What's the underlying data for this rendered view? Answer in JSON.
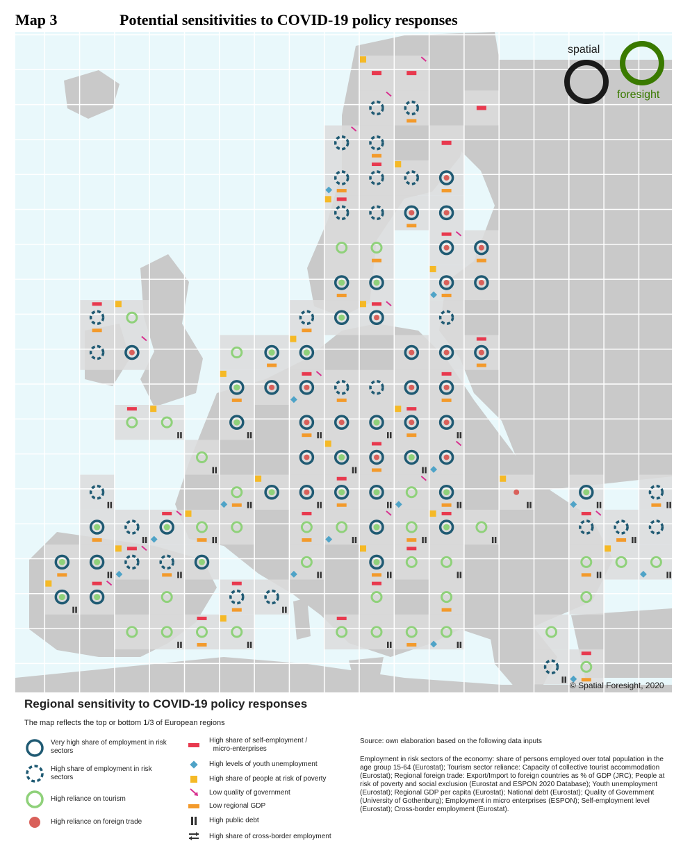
{
  "header": {
    "map_number": "Map 3",
    "title": "Potential sensitivities to COVID-19 policy responses"
  },
  "logo": {
    "word_top": "spatial",
    "word_bottom": "foresight",
    "colors": {
      "dark": "#1a1a1a",
      "green": "#3a7a00"
    }
  },
  "copyright": "© Spatial Foresight, 2020",
  "legend": {
    "title": "Regional sensitivity to COVID-19 policy responses",
    "subtitle": "The map reflects the top or bottom 1/3 of European regions",
    "left_items": [
      {
        "label_line1": "Very high share of employment in risk",
        "label_line2": "sectors",
        "icon": "solid-teal-ring-icon"
      },
      {
        "label_line1": "High share of employment in risk",
        "label_line2": "sectors",
        "icon": "dashed-teal-ring-icon"
      },
      {
        "label_line1": "High reliance on tourism",
        "label_line2": "",
        "icon": "green-ring-icon"
      },
      {
        "label_line1": "High reliance on foreign trade",
        "label_line2": "",
        "icon": "red-dot-icon"
      }
    ],
    "right_items": [
      {
        "label_line1": "High share of self-employment /",
        "label_line2": "micro-enterprises",
        "icon": "red-bar-icon"
      },
      {
        "label_line1": "High levels of youth unemployment",
        "label_line2": "",
        "icon": "blue-diamond-icon"
      },
      {
        "label_line1": "High share of people at risk of poverty",
        "label_line2": "",
        "icon": "yellow-square-icon"
      },
      {
        "label_line1": "Low quality of government",
        "label_line2": "",
        "icon": "pink-arrow-icon"
      },
      {
        "label_line1": "Low regional GDP",
        "label_line2": "",
        "icon": "orange-bar-icon"
      },
      {
        "label_line1": "High public debt",
        "label_line2": "",
        "icon": "double-bar-icon"
      },
      {
        "label_line1": "High share of cross-border employment",
        "label_line2": "",
        "icon": "exchange-arrows-icon"
      }
    ]
  },
  "source": {
    "title": "Source: own elaboration based on the following data inputs",
    "text": "Employment in risk sectors of the economy: share of persons employed over total population in the age group 15-64 (Eurostat); Tourism sector reliance: Capacity of collective tourist accommodation (Eurostat); Regional foreign trade: Export/Import to foreign countries as % of GDP (JRC); People at risk of poverty and social exclusion (Eurostat and ESPON 2020 Database); Youth unemployment (Eurostat); Regional GDP per capita (Eurostat); National debt (Eurostat); Quality of Government (University of Gothenburg); Employment in micro enterprises (ESPON); Self-employment level (Eurostat); Cross-border employment (Eurostat)."
  },
  "colors": {
    "sea": "#e9f8fb",
    "land": "#c9c9c9",
    "land_covered": "#dcdcdc",
    "grid": "#ffffff",
    "teal": "#1f5a73",
    "green": "#8fd17a",
    "red_dot": "#d9605a",
    "red_bar": "#e8394e",
    "blue_diamond": "#4fa3c7",
    "yellow": "#f5b926",
    "pink": "#d8318f",
    "orange": "#f39a2b",
    "dark": "#333333"
  }
}
